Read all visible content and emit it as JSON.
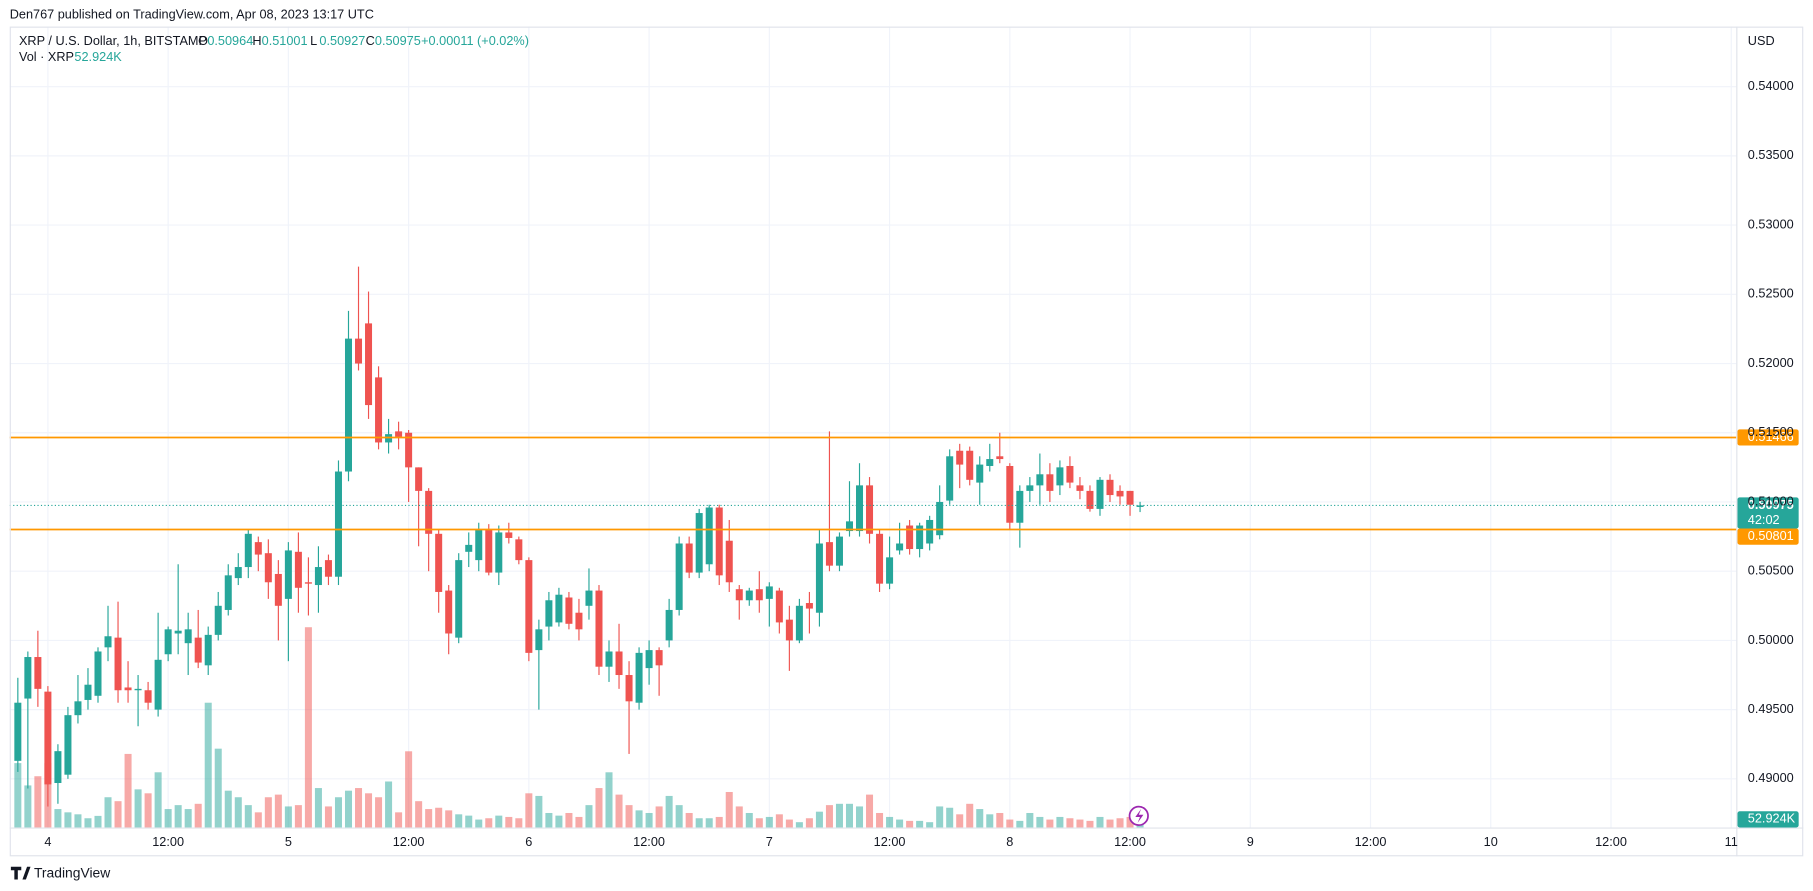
{
  "chart_data": {
    "type": "candlestick",
    "header": "Den767 published on TradingView.com, Apr 08, 2023 13:17 UTC",
    "symbol": "XRP / U.S. Dollar, 1h, BITSTAMP",
    "ohlc_labels": [
      "O",
      "H",
      "L",
      "C"
    ],
    "change": "+0.00011 (+0.02%)",
    "volume_title": "Vol · XRP",
    "volume_label": "52.924K",
    "currency": "USD",
    "countdown": "42:02",
    "brand": "TradingView",
    "up_color": "#26a69a",
    "down_color": "#ef5350",
    "level_color": "#ff9800",
    "levels": [
      0.51466,
      0.50801
    ],
    "open": [
      0.4913,
      0.4958,
      0.4988,
      0.4963,
      0.4897,
      0.4903,
      0.4946,
      0.4957,
      0.496,
      0.4995,
      0.5002,
      0.4966,
      0.4964,
      0.4964,
      0.495,
      0.499,
      0.5005,
      0.4998,
      0.5002,
      0.4982,
      0.5004,
      0.5022,
      0.5045,
      0.5053,
      0.5071,
      0.5063,
      0.5048,
      0.503,
      0.5064,
      0.5042,
      0.504,
      0.5058,
      0.5046,
      0.5122,
      0.5218,
      0.5229,
      0.519,
      0.5143,
      0.5151,
      0.515,
      0.5125,
      0.5108,
      0.5077,
      0.5036,
      0.5002,
      0.5064,
      0.5058,
      0.508,
      0.5049,
      0.5078,
      0.5073,
      0.5058,
      0.4993,
      0.501,
      0.5013,
      0.5031,
      0.502,
      0.5025,
      0.5036,
      0.4981,
      0.4992,
      0.4975,
      0.4955,
      0.498,
      0.4993,
      0.5,
      0.5022,
      0.507,
      0.5049,
      0.5055,
      0.5096,
      0.5072,
      0.5037,
      0.5029,
      0.5037,
      0.503,
      0.5036,
      0.5015,
      0.5,
      0.5027,
      0.502,
      0.5071,
      0.5054,
      0.5079,
      0.5079,
      0.5112,
      0.5077,
      0.5041,
      0.5065,
      0.5083,
      0.5066,
      0.507,
      0.5076,
      0.5101,
      0.5137,
      0.5137,
      0.5114,
      0.5126,
      0.5133,
      0.5126,
      0.5085,
      0.5108,
      0.5112,
      0.512,
      0.5112,
      0.5126,
      0.5112,
      0.5108,
      0.5095,
      0.5116,
      0.5108,
      0.5108,
      0.50964
    ],
    "high": [
      0.4973,
      0.4992,
      0.5007,
      0.4967,
      0.4925,
      0.4952,
      0.4975,
      0.498,
      0.4995,
      0.5025,
      0.5028,
      0.4985,
      0.4975,
      0.497,
      0.502,
      0.501,
      0.5055,
      0.502,
      0.5022,
      0.501,
      0.5035,
      0.5055,
      0.5063,
      0.508,
      0.5075,
      0.5073,
      0.5058,
      0.5071,
      0.5078,
      0.506,
      0.5068,
      0.5062,
      0.513,
      0.5238,
      0.527,
      0.5252,
      0.5198,
      0.516,
      0.5158,
      0.5152,
      0.5125,
      0.511,
      0.508,
      0.504,
      0.5063,
      0.5078,
      0.5085,
      0.5084,
      0.5083,
      0.5085,
      0.5075,
      0.506,
      0.5015,
      0.5035,
      0.5038,
      0.5035,
      0.503,
      0.5052,
      0.504,
      0.5,
      0.5012,
      0.4985,
      0.4995,
      0.5,
      0.4995,
      0.503,
      0.5075,
      0.5075,
      0.5095,
      0.5098,
      0.5098,
      0.5087,
      0.504,
      0.5038,
      0.505,
      0.5042,
      0.5038,
      0.5025,
      0.503,
      0.5035,
      0.508,
      0.5151,
      0.5078,
      0.5115,
      0.5128,
      0.5118,
      0.508,
      0.5075,
      0.5085,
      0.5087,
      0.5085,
      0.509,
      0.5112,
      0.5138,
      0.5142,
      0.514,
      0.5133,
      0.5142,
      0.515,
      0.5128,
      0.5112,
      0.5118,
      0.5135,
      0.5128,
      0.513,
      0.5133,
      0.5118,
      0.5112,
      0.5118,
      0.512,
      0.5112,
      0.5108,
      0.51001
    ],
    "low": [
      0.4905,
      0.4893,
      0.4952,
      0.488,
      0.4882,
      0.49,
      0.494,
      0.495,
      0.4955,
      0.4985,
      0.4955,
      0.4955,
      0.4938,
      0.495,
      0.4945,
      0.4985,
      0.499,
      0.4975,
      0.498,
      0.4975,
      0.5,
      0.5018,
      0.504,
      0.5045,
      0.505,
      0.503,
      0.5,
      0.4985,
      0.502,
      0.5018,
      0.502,
      0.504,
      0.504,
      0.5115,
      0.5195,
      0.516,
      0.5138,
      0.5135,
      0.5138,
      0.51,
      0.5068,
      0.505,
      0.502,
      0.499,
      0.4998,
      0.5053,
      0.505,
      0.5047,
      0.504,
      0.507,
      0.5055,
      0.4985,
      0.495,
      0.5,
      0.501,
      0.5008,
      0.5,
      0.5015,
      0.4975,
      0.497,
      0.4965,
      0.4918,
      0.495,
      0.4968,
      0.496,
      0.4995,
      0.5018,
      0.5045,
      0.5045,
      0.505,
      0.504,
      0.5035,
      0.5015,
      0.5025,
      0.502,
      0.501,
      0.5005,
      0.4978,
      0.4998,
      0.5005,
      0.501,
      0.505,
      0.505,
      0.5075,
      0.5075,
      0.507,
      0.5035,
      0.5037,
      0.5062,
      0.5062,
      0.506,
      0.5065,
      0.5073,
      0.5098,
      0.511,
      0.5112,
      0.5098,
      0.5122,
      0.5128,
      0.508,
      0.5067,
      0.51,
      0.5098,
      0.51,
      0.5105,
      0.511,
      0.5102,
      0.5093,
      0.509,
      0.51,
      0.5098,
      0.509,
      0.50927
    ],
    "close": [
      0.4955,
      0.4988,
      0.4965,
      0.4896,
      0.492,
      0.4946,
      0.4956,
      0.4968,
      0.4992,
      0.5003,
      0.4964,
      0.4964,
      0.4965,
      0.4955,
      0.4986,
      0.5008,
      0.5007,
      0.5008,
      0.4984,
      0.5004,
      0.5025,
      0.5047,
      0.5053,
      0.5077,
      0.5062,
      0.5042,
      0.5025,
      0.5065,
      0.5038,
      0.5041,
      0.5053,
      0.5046,
      0.5122,
      0.5218,
      0.52,
      0.517,
      0.5143,
      0.5149,
      0.5147,
      0.5125,
      0.5108,
      0.5077,
      0.5035,
      0.5005,
      0.5058,
      0.5069,
      0.508,
      0.5049,
      0.5078,
      0.5074,
      0.5058,
      0.4991,
      0.5008,
      0.5029,
      0.5033,
      0.5012,
      0.5008,
      0.5036,
      0.4981,
      0.4992,
      0.4975,
      0.4956,
      0.4991,
      0.4993,
      0.4982,
      0.5022,
      0.507,
      0.5049,
      0.5092,
      0.5096,
      0.5047,
      0.5042,
      0.5029,
      0.5036,
      0.5029,
      0.5039,
      0.5013,
      0.5,
      0.5025,
      0.5023,
      0.507,
      0.5054,
      0.5075,
      0.5086,
      0.5112,
      0.5077,
      0.5041,
      0.506,
      0.507,
      0.5066,
      0.5083,
      0.5087,
      0.51,
      0.5133,
      0.5127,
      0.5116,
      0.5127,
      0.5131,
      0.5131,
      0.5085,
      0.5108,
      0.5112,
      0.512,
      0.5108,
      0.5125,
      0.5114,
      0.5108,
      0.5095,
      0.5116,
      0.5105,
      0.5104,
      0.5098,
      0.50975
    ],
    "volume": [
      490,
      320,
      390,
      490,
      140,
      115,
      100,
      70,
      88,
      230,
      200,
      560,
      290,
      260,
      420,
      140,
      170,
      140,
      180,
      950,
      600,
      280,
      230,
      170,
      115,
      230,
      250,
      160,
      170,
      1525,
      300,
      160,
      230,
      280,
      300,
      260,
      230,
      350,
      115,
      580,
      200,
      140,
      150,
      130,
      100,
      90,
      60,
      70,
      90,
      80,
      70,
      260,
      240,
      110,
      90,
      110,
      80,
      170,
      300,
      420,
      250,
      170,
      130,
      110,
      160,
      240,
      170,
      110,
      70,
      70,
      80,
      270,
      160,
      110,
      70,
      80,
      100,
      60,
      40,
      70,
      120,
      170,
      180,
      180,
      160,
      250,
      110,
      80,
      60,
      50,
      50,
      40,
      160,
      150,
      100,
      180,
      140,
      100,
      110,
      60,
      50,
      110,
      80,
      60,
      80,
      70,
      60,
      50,
      80,
      60,
      70,
      80,
      52.924
    ],
    "volume_ylim": [
      0,
      6100
    ],
    "xlim": [
      -0.81,
      171.5
    ],
    "ylim": [
      0.48649,
      0.54434
    ],
    "xticks": [
      {
        "value": 3,
        "label": "4"
      },
      {
        "value": 15,
        "label": "12:00"
      },
      {
        "value": 27,
        "label": "5"
      },
      {
        "value": 39,
        "label": "12:00"
      },
      {
        "value": 51,
        "label": "6"
      },
      {
        "value": 63,
        "label": "12:00"
      },
      {
        "value": 75,
        "label": "7"
      },
      {
        "value": 87,
        "label": "12:00"
      },
      {
        "value": 99,
        "label": "8"
      },
      {
        "value": 111,
        "label": "12:00"
      },
      {
        "value": 123,
        "label": "9"
      },
      {
        "value": 135,
        "label": "12:00"
      },
      {
        "value": 147,
        "label": "10"
      },
      {
        "value": 159,
        "label": "12:00"
      },
      {
        "value": 171,
        "label": "11"
      }
    ],
    "yticks": [
      {
        "value": 0.49,
        "label": "0.49000"
      },
      {
        "value": 0.495,
        "label": "0.49500"
      },
      {
        "value": 0.5,
        "label": "0.50000"
      },
      {
        "value": 0.505,
        "label": "0.50500"
      },
      {
        "value": 0.51,
        "label": "0.51000"
      },
      {
        "value": 0.515,
        "label": "0.51500"
      },
      {
        "value": 0.52,
        "label": "0.52000"
      },
      {
        "value": 0.525,
        "label": "0.52500"
      },
      {
        "value": 0.53,
        "label": "0.53000"
      },
      {
        "value": 0.535,
        "label": "0.53500"
      },
      {
        "value": 0.54,
        "label": "0.54000"
      }
    ],
    "grid": true
  }
}
